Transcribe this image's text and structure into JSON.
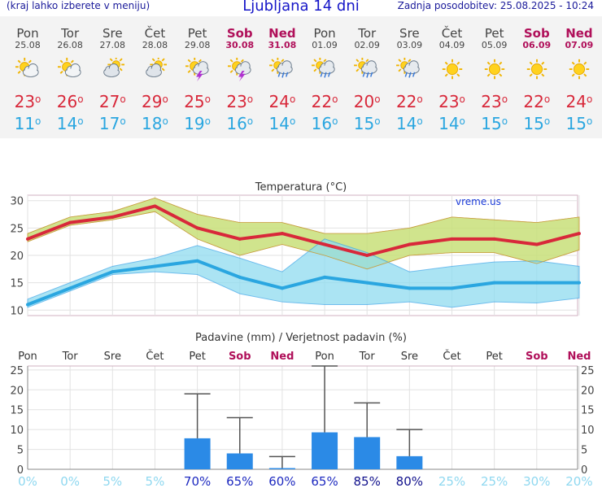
{
  "header": {
    "hint": "(kraj lahko izberete v meniju)",
    "title": "Ljubljana 14 dni",
    "updated": "Zadnja posodobitev: 25.08.2025 - 10:24"
  },
  "days": [
    {
      "name": "Pon",
      "date": "25.08",
      "weekend": false,
      "icon": "partly-cloudy-icon",
      "tmax": 23,
      "tmin": 11
    },
    {
      "name": "Tor",
      "date": "26.08",
      "weekend": false,
      "icon": "partly-cloudy-icon",
      "tmax": 26,
      "tmin": 14
    },
    {
      "name": "Sre",
      "date": "27.08",
      "weekend": false,
      "icon": "cloudy-icon",
      "tmax": 27,
      "tmin": 17
    },
    {
      "name": "Čet",
      "date": "28.08",
      "weekend": false,
      "icon": "cloudy-icon",
      "tmax": 29,
      "tmin": 18
    },
    {
      "name": "Pet",
      "date": "29.08",
      "weekend": false,
      "icon": "thunderstorm-icon",
      "tmax": 25,
      "tmin": 19
    },
    {
      "name": "Sob",
      "date": "30.08",
      "weekend": true,
      "icon": "thunderstorm-icon",
      "tmax": 23,
      "tmin": 16
    },
    {
      "name": "Ned",
      "date": "31.08",
      "weekend": true,
      "icon": "rain-icon",
      "tmax": 24,
      "tmin": 14
    },
    {
      "name": "Pon",
      "date": "01.09",
      "weekend": false,
      "icon": "rain-icon",
      "tmax": 22,
      "tmin": 16
    },
    {
      "name": "Tor",
      "date": "02.09",
      "weekend": false,
      "icon": "rain-icon",
      "tmax": 20,
      "tmin": 15
    },
    {
      "name": "Sre",
      "date": "03.09",
      "weekend": false,
      "icon": "rain-icon",
      "tmax": 22,
      "tmin": 14
    },
    {
      "name": "Čet",
      "date": "04.09",
      "weekend": false,
      "icon": "sunny-icon",
      "tmax": 23,
      "tmin": 14
    },
    {
      "name": "Pet",
      "date": "05.09",
      "weekend": false,
      "icon": "sunny-icon",
      "tmax": 23,
      "tmin": 15
    },
    {
      "name": "Sob",
      "date": "06.09",
      "weekend": true,
      "icon": "sunny-icon",
      "tmax": 22,
      "tmin": 15
    },
    {
      "name": "Ned",
      "date": "07.09",
      "weekend": true,
      "icon": "sunny-icon",
      "tmax": 24,
      "tmin": 15
    }
  ],
  "degree_symbol": "o",
  "colors": {
    "tmax": "#d8283a",
    "tmin": "#2aa6e0",
    "max_band": "#c8e07a",
    "min_band": "#8fdcf0",
    "overlap_band": "#8ccf80",
    "precip_bar": "#2b8ae6",
    "prob_low": "#8fd8f0",
    "prob_high": "#10108c",
    "weekend": "#b0105a"
  },
  "chart_data": [
    {
      "type": "line",
      "title": "Temperatura (°C)",
      "watermark": "vreme.us",
      "x": [
        "Pon",
        "Tor",
        "Sre",
        "Čet",
        "Pet",
        "Sob",
        "Ned",
        "Pon",
        "Tor",
        "Sre",
        "Čet",
        "Pet",
        "Sob",
        "Ned"
      ],
      "ylim": [
        9,
        31
      ],
      "yticks": [
        10,
        15,
        20,
        25,
        30
      ],
      "grid": true,
      "series": [
        {
          "values": [
            23,
            26,
            27,
            29,
            25,
            23,
            24,
            22,
            20,
            22,
            23,
            23,
            22,
            24
          ],
          "band_low": [
            22.5,
            25.5,
            26.5,
            28,
            23,
            20,
            22,
            20,
            17.5,
            20,
            20.5,
            20.5,
            18.5,
            21
          ],
          "band_high": [
            24,
            27,
            28,
            30.5,
            27.5,
            26,
            26,
            24,
            24,
            25,
            27,
            26.5,
            26,
            27
          ]
        },
        {
          "values": [
            11,
            14,
            17,
            18,
            19,
            16,
            14,
            16,
            15,
            14,
            14,
            15,
            15,
            15
          ],
          "band_low": [
            10.5,
            13.5,
            16.5,
            17,
            16.5,
            13,
            11.5,
            11,
            11,
            11.5,
            10.5,
            11.5,
            11.3,
            12.2
          ],
          "band_high": [
            12,
            15,
            18,
            19.5,
            21.8,
            19.5,
            17,
            23,
            20.5,
            17,
            18,
            18.8,
            19,
            18
          ]
        }
      ]
    },
    {
      "type": "bar",
      "title": "Padavine (mm) / Verjetnost padavin (%)",
      "categories": [
        "Pon",
        "Tor",
        "Sre",
        "Čet",
        "Pet",
        "Sob",
        "Ned",
        "Pon",
        "Tor",
        "Sre",
        "Čet",
        "Pet",
        "Sob",
        "Ned"
      ],
      "ylim": [
        0,
        26
      ],
      "yticks": [
        0,
        5,
        10,
        15,
        20,
        25
      ],
      "values": [
        0,
        0,
        0,
        0,
        7.8,
        4,
        0.3,
        9.3,
        8.1,
        3.3,
        0,
        0,
        0,
        0
      ],
      "error_max": [
        0,
        0,
        0,
        0,
        19,
        13,
        3.2,
        26,
        16.7,
        10,
        0,
        0,
        0,
        0
      ],
      "probability": [
        "0%",
        "0%",
        "5%",
        "5%",
        "70%",
        "65%",
        "60%",
        "65%",
        "85%",
        "80%",
        "25%",
        "25%",
        "30%",
        "20%"
      ],
      "probability_values": [
        0,
        0,
        5,
        5,
        70,
        65,
        60,
        65,
        85,
        80,
        25,
        25,
        30,
        20
      ]
    }
  ]
}
